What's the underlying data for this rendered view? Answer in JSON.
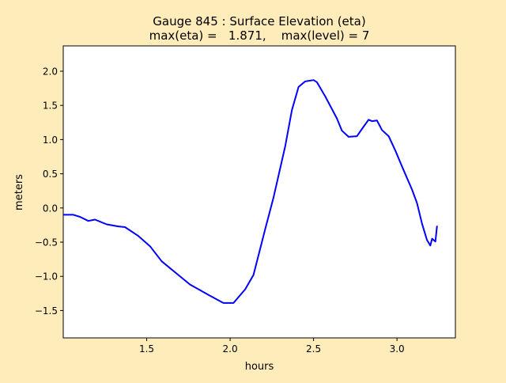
{
  "chart_data": {
    "type": "line",
    "title_line1": "Gauge 845 : Surface Elevation (eta)",
    "title_line2": "max(eta) =   1.871,    max(level) = 7",
    "xlabel": "hours",
    "ylabel": "meters",
    "xlim": [
      1.0,
      3.35
    ],
    "ylim": [
      -1.9,
      2.37
    ],
    "xticks": [
      1.5,
      2.0,
      2.5,
      3.0
    ],
    "xtick_labels": [
      "1.5",
      "2.0",
      "2.5",
      "3.0"
    ],
    "yticks": [
      -1.5,
      -1.0,
      -0.5,
      0.0,
      0.5,
      1.0,
      1.5,
      2.0
    ],
    "ytick_labels": [
      "−1.5",
      "−1.0",
      "−0.5",
      "0.0",
      "0.5",
      "1.0",
      "1.5",
      "2.0"
    ],
    "grid": false,
    "series": [
      {
        "name": "eta",
        "color": "#0000ff",
        "x": [
          1.0,
          1.06,
          1.1,
          1.15,
          1.19,
          1.26,
          1.33,
          1.37,
          1.45,
          1.52,
          1.59,
          1.69,
          1.76,
          1.87,
          1.96,
          2.02,
          2.09,
          2.14,
          2.21,
          2.26,
          2.33,
          2.37,
          2.41,
          2.45,
          2.5,
          2.52,
          2.57,
          2.64,
          2.67,
          2.71,
          2.76,
          2.8,
          2.83,
          2.85,
          2.88,
          2.91,
          2.95,
          2.99,
          3.04,
          3.09,
          3.12,
          3.15,
          3.18,
          3.2,
          3.21,
          3.23,
          3.24
        ],
        "y": [
          -0.1,
          -0.1,
          -0.13,
          -0.19,
          -0.17,
          -0.24,
          -0.27,
          -0.28,
          -0.41,
          -0.56,
          -0.78,
          -0.98,
          -1.12,
          -1.27,
          -1.39,
          -1.39,
          -1.19,
          -0.98,
          -0.31,
          0.15,
          0.9,
          1.43,
          1.77,
          1.85,
          1.87,
          1.84,
          1.63,
          1.31,
          1.13,
          1.04,
          1.05,
          1.19,
          1.29,
          1.27,
          1.28,
          1.14,
          1.05,
          0.84,
          0.55,
          0.27,
          0.07,
          -0.23,
          -0.47,
          -0.55,
          -0.45,
          -0.49,
          -0.26
        ]
      }
    ]
  }
}
